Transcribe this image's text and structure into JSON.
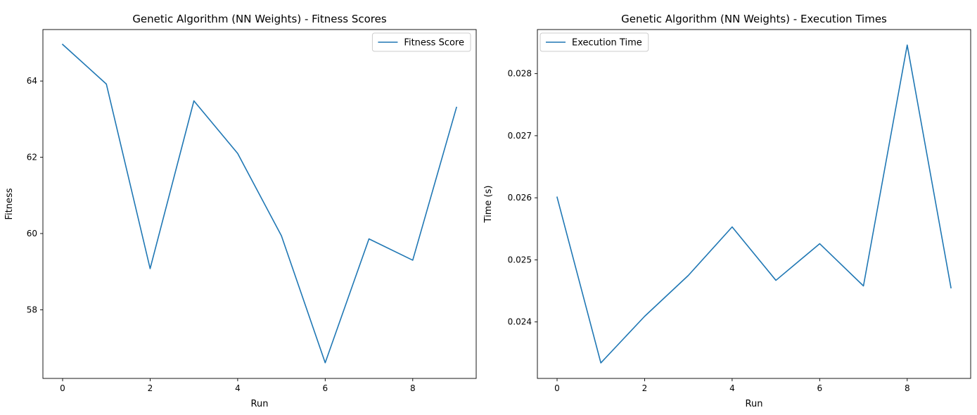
{
  "line_color": "#1f77b4",
  "chart_data": [
    {
      "type": "line",
      "title": "Genetic Algorithm (NN Weights) - Fitness Scores",
      "xlabel": "Run",
      "ylabel": "Fitness",
      "x": [
        0,
        1,
        2,
        3,
        4,
        5,
        6,
        7,
        8,
        9
      ],
      "series": [
        {
          "name": "Fitness Score",
          "values": [
            64.96,
            63.92,
            59.08,
            63.48,
            62.1,
            59.94,
            56.61,
            59.86,
            59.3,
            63.31
          ]
        }
      ],
      "xlim": [
        -0.45,
        9.45
      ],
      "ylim": [
        56.2,
        65.35
      ],
      "xticks": [
        0,
        2,
        4,
        6,
        8
      ],
      "xtick_labels": [
        "0",
        "2",
        "4",
        "6",
        "8"
      ],
      "yticks": [
        58,
        60,
        62,
        64
      ],
      "ytick_labels": [
        "58",
        "60",
        "62",
        "64"
      ],
      "grid": false,
      "legend": "top-right"
    },
    {
      "type": "line",
      "title": "Genetic Algorithm (NN Weights) - Execution Times",
      "xlabel": "Run",
      "ylabel": "Time (s)",
      "x": [
        0,
        1,
        2,
        3,
        4,
        5,
        6,
        7,
        8,
        9
      ],
      "series": [
        {
          "name": "Execution Time",
          "values": [
            0.02601,
            0.02334,
            0.02409,
            0.02475,
            0.02553,
            0.02467,
            0.02526,
            0.02458,
            0.02846,
            0.02455
          ]
        }
      ],
      "xlim": [
        -0.45,
        9.45
      ],
      "ylim": [
        0.02309,
        0.02871
      ],
      "xticks": [
        0,
        2,
        4,
        6,
        8
      ],
      "xtick_labels": [
        "0",
        "2",
        "4",
        "6",
        "8"
      ],
      "yticks": [
        0.024,
        0.025,
        0.026,
        0.027,
        0.028
      ],
      "ytick_labels": [
        "0.024",
        "0.025",
        "0.026",
        "0.027",
        "0.028"
      ],
      "grid": false,
      "legend": "top-left"
    }
  ]
}
